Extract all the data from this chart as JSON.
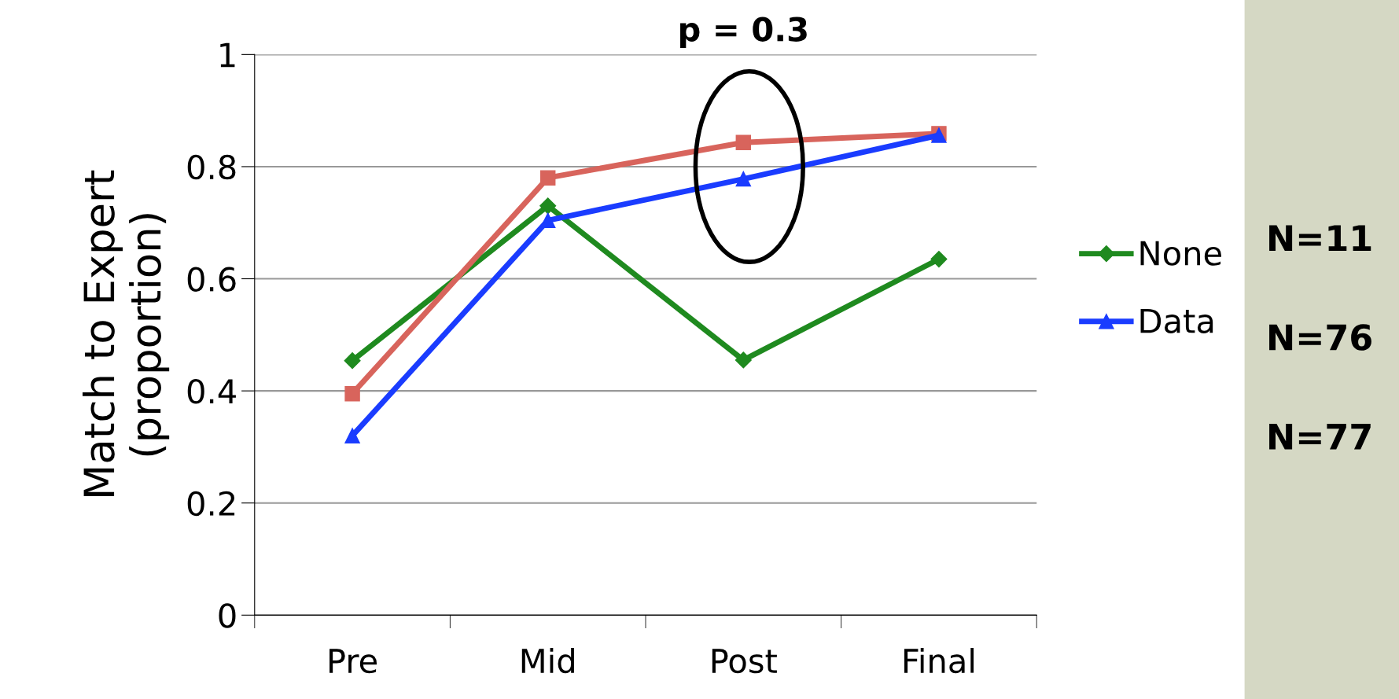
{
  "chart_data": {
    "type": "line",
    "ylabel": "Match to Expert\n(proportion)",
    "categories": [
      "Pre",
      "Mid",
      "Post",
      "Final"
    ],
    "series": [
      {
        "name": "None",
        "color": "#1f8a1f",
        "marker": "diamond",
        "values": [
          0.454,
          0.73,
          0.455,
          0.635
        ]
      },
      {
        "color": "#d8645c",
        "marker": "square",
        "values": [
          0.395,
          0.78,
          0.843,
          0.859
        ]
      },
      {
        "name": "Data",
        "color": "#1a3cff",
        "marker": "triangle",
        "values": [
          0.32,
          0.704,
          0.778,
          0.856
        ]
      }
    ],
    "ylim": [
      0,
      1
    ],
    "yticks": [
      0,
      0.2,
      0.4,
      0.6,
      0.8,
      1
    ],
    "grid": "y",
    "legend": "right",
    "annotations": [
      "p = 0.3",
      "N=11",
      "N=76",
      "N=77"
    ]
  }
}
